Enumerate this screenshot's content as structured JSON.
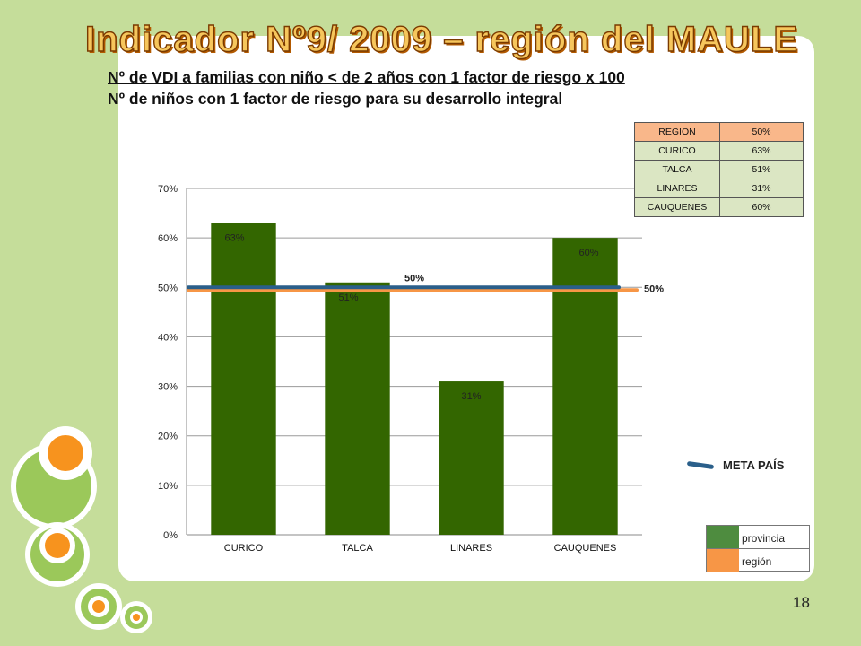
{
  "slide": {
    "title": "Indicador Nº9/ 2009 – región del MAULE",
    "subtitle_numerator": "Nº de VDI a familias con niño < de 2 años con 1 factor de riesgo x 100",
    "subtitle_denominator": "Nº de niños con 1 factor de riesgo para su desarrollo integral",
    "page_number": "18"
  },
  "colors": {
    "bar": "#336600",
    "meta_line": "#2a5f8a",
    "region_line": "#f79646",
    "provincia_swatch": "#4e8c3f",
    "region_swatch": "#f79646"
  },
  "table": {
    "rows": [
      {
        "name": "REGION",
        "value": "50%",
        "kind": "region"
      },
      {
        "name": "CURICO",
        "value": "63%",
        "kind": "provincia"
      },
      {
        "name": "TALCA",
        "value": "51%",
        "kind": "provincia"
      },
      {
        "name": "LINARES",
        "value": "31%",
        "kind": "provincia"
      },
      {
        "name": "CAUQUENES",
        "value": "60%",
        "kind": "provincia"
      }
    ]
  },
  "legend": {
    "meta_label": "META PAÍS",
    "provincia": "provincia",
    "region": "región"
  },
  "chart_data": {
    "type": "bar",
    "categories": [
      "CURICO",
      "TALCA",
      "LINARES",
      "CAUQUENES"
    ],
    "series": [
      {
        "name": "provincia",
        "values": [
          63,
          51,
          31,
          60
        ],
        "labels": [
          "63%",
          "51%",
          "31%",
          "60%"
        ]
      }
    ],
    "reference_lines": [
      {
        "name": "META PAÍS",
        "value": 50,
        "label": "50%"
      },
      {
        "name": "región",
        "value": 50,
        "label": "50%"
      }
    ],
    "y_ticks": [
      "0%",
      "10%",
      "20%",
      "30%",
      "40%",
      "50%",
      "60%",
      "70%"
    ],
    "ylim": [
      0,
      70
    ],
    "grid": true,
    "legend_position": "right"
  }
}
